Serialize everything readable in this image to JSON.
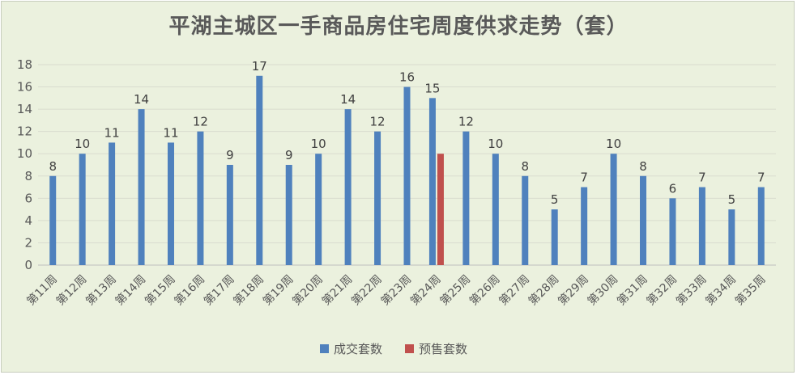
{
  "chart_data": {
    "type": "bar",
    "title": "平湖主城区一手商品房住宅周度供求走势（套）",
    "categories": [
      "第11周",
      "第12周",
      "第13周",
      "第14周",
      "第15周",
      "第16周",
      "第17周",
      "第18周",
      "第19周",
      "第20周",
      "第21周",
      "第22周",
      "第23周",
      "第24周",
      "第25周",
      "第26周",
      "第27周",
      "第28周",
      "第29周",
      "第30周",
      "第31周",
      "第32周",
      "第33周",
      "第34周",
      "第35周"
    ],
    "series": [
      {
        "name": "成交套数",
        "color": "#4f81bd",
        "values": [
          8,
          10,
          11,
          14,
          11,
          12,
          9,
          17,
          9,
          10,
          14,
          12,
          16,
          15,
          12,
          10,
          8,
          5,
          7,
          10,
          8,
          6,
          7,
          5,
          7
        ],
        "show_labels": true
      },
      {
        "name": "预售套数",
        "color": "#c0504d",
        "values": [
          null,
          null,
          null,
          null,
          null,
          null,
          null,
          null,
          null,
          null,
          null,
          null,
          null,
          10,
          null,
          null,
          null,
          null,
          null,
          null,
          null,
          null,
          null,
          null,
          null
        ],
        "show_labels": false
      }
    ],
    "yticks": [
      0,
      2,
      4,
      6,
      8,
      10,
      12,
      14,
      16,
      18
    ],
    "ylim": [
      0,
      18
    ],
    "grid": true,
    "legend_position": "bottom"
  }
}
